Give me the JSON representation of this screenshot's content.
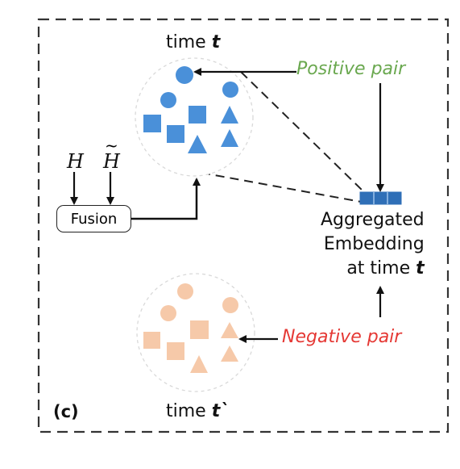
{
  "panel_label": "(c)",
  "time_top": {
    "prefix": "time ",
    "var": "t"
  },
  "time_bottom": {
    "prefix": "time ",
    "var": "t`"
  },
  "positive_pair": "Positive pair",
  "negative_pair": "Negative pair",
  "aggregated": {
    "line1": "Aggregated",
    "line2": "Embedding",
    "line3_prefix": "at time ",
    "line3_var": "t"
  },
  "fusion_label": "Fusion",
  "inputs": {
    "h": "H",
    "h_tilde": "H",
    "tilde": "~"
  },
  "colors": {
    "positive_shapes": "#4a90d9",
    "negative_shapes": "#f6c9a9",
    "positive_text": "#6aa84f",
    "negative_text": "#e53935",
    "embedding_block": "#2f6fb7",
    "frame": "#333333"
  }
}
